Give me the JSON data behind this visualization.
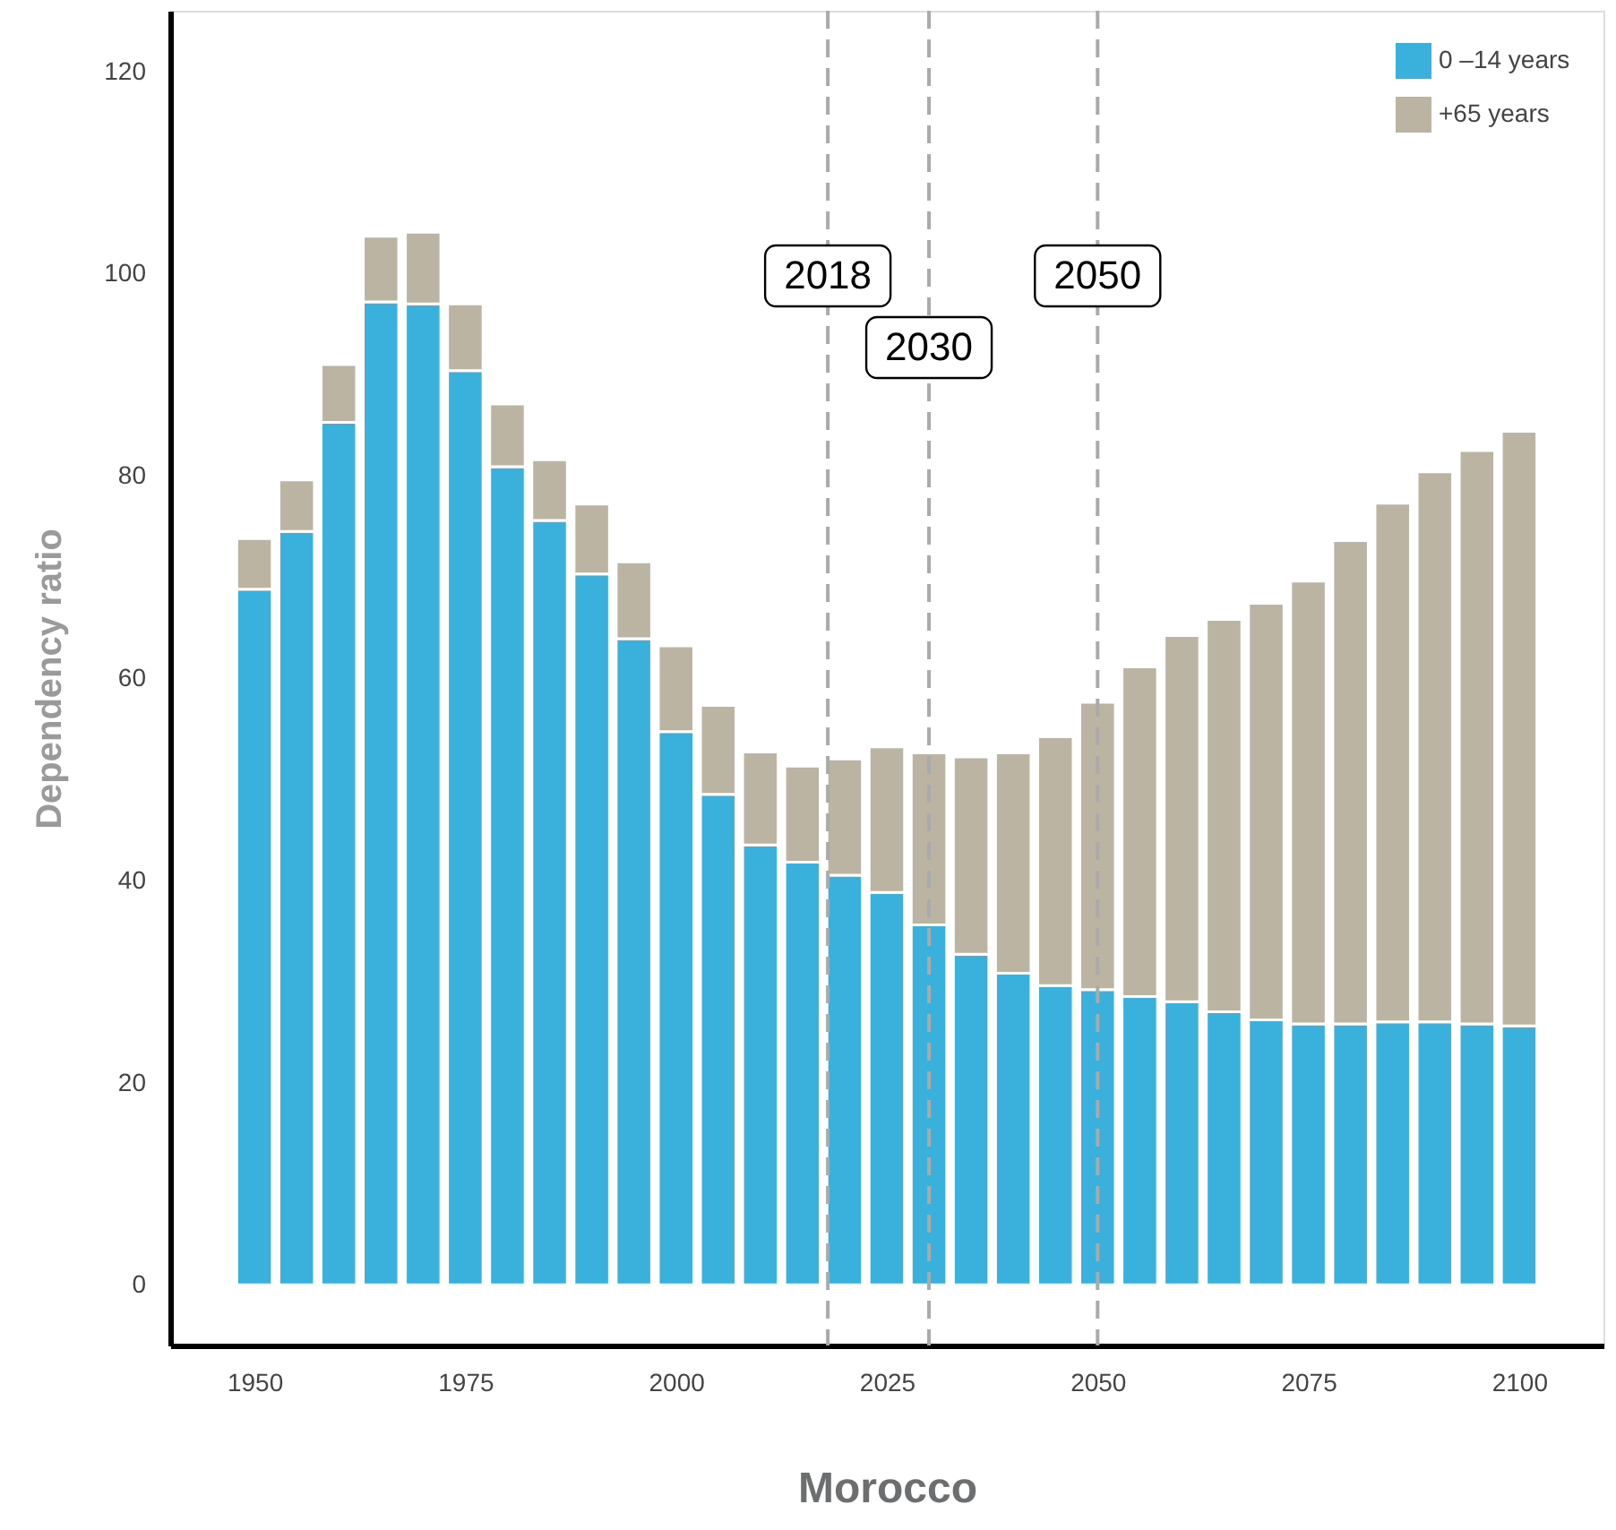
{
  "chart_data": {
    "type": "bar",
    "stacked": true,
    "xlabel": "Morocco",
    "ylabel": "Dependency ratio",
    "x": [
      1950,
      1955,
      1960,
      1965,
      1970,
      1975,
      1980,
      1985,
      1990,
      1995,
      2000,
      2005,
      2010,
      2015,
      2020,
      2025,
      2030,
      2035,
      2040,
      2045,
      2050,
      2055,
      2060,
      2065,
      2070,
      2075,
      2080,
      2085,
      2090,
      2095,
      2100
    ],
    "series": [
      {
        "name": "0 –14 years",
        "color": "#3ab0dc",
        "values": [
          68.8,
          74.5,
          85.3,
          97.2,
          97.0,
          90.4,
          80.9,
          75.6,
          70.3,
          63.9,
          54.7,
          48.5,
          43.5,
          41.8,
          40.5,
          38.8,
          35.6,
          32.7,
          30.8,
          29.6,
          29.2,
          28.5,
          28.0,
          27.0,
          26.2,
          25.8,
          25.8,
          26.0,
          26.0,
          25.8,
          25.6
        ]
      },
      {
        "name": "+65 years",
        "color": "#bbb4a3",
        "values": [
          5.0,
          5.1,
          5.7,
          6.5,
          7.1,
          6.6,
          6.2,
          6.0,
          6.9,
          7.6,
          8.5,
          8.8,
          9.2,
          9.5,
          11.5,
          14.4,
          17.0,
          19.5,
          21.8,
          24.6,
          28.4,
          32.6,
          36.2,
          38.8,
          41.2,
          43.8,
          47.8,
          51.3,
          54.4,
          56.7,
          58.8
        ]
      }
    ],
    "xlim": [
      1940,
      2110
    ],
    "xticks": [
      1950,
      1975,
      2000,
      2025,
      2050,
      2075,
      2100
    ],
    "ylim": [
      -6,
      126
    ],
    "yticks": [
      0,
      20,
      40,
      60,
      80,
      100,
      120
    ],
    "ref_lines": [
      {
        "axis": "x",
        "value": 2018,
        "label": "2018",
        "color": "#aaaaaa",
        "line_style": "dashed"
      },
      {
        "axis": "x",
        "value": 2030,
        "label": "2030",
        "color": "#aaaaaa",
        "line_style": "dashed"
      },
      {
        "axis": "x",
        "value": 2050,
        "label": "2050",
        "color": "#aaaaaa",
        "line_style": "dashed"
      }
    ],
    "grid": false,
    "legend": "top right"
  }
}
